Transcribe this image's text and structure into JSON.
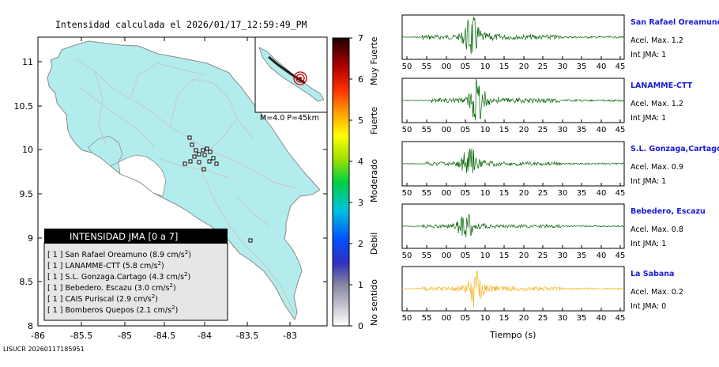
{
  "title": "Intensidad calculada el 2026/01/17_12:59:49_PM",
  "footer": "LISUCR 20260117185951",
  "map": {
    "y_ticks": [
      "11",
      "10.5",
      "10",
      "9.5",
      "9",
      "8.5",
      "8"
    ],
    "x_ticks": [
      "-86",
      "-85.5",
      "-85",
      "-84.5",
      "-84",
      "-83.5",
      "-83"
    ],
    "land_color": "#b3ecec",
    "road_color": "#c8c8c8",
    "inset_label": "M=4.0 P=45km",
    "legend": {
      "title": "INTENSIDAD JMA [0 a 7]",
      "items": [
        {
          "int": "[ 1 ]",
          "name": "San Rafael Oreamuno",
          "value": "(8.9 cm/s",
          "sup": "2",
          "end": ")"
        },
        {
          "int": "[ 1 ]",
          "name": "LANAMME-CTT",
          "value": "(5.8 cm/s",
          "sup": "2",
          "end": ")"
        },
        {
          "int": "[ 1 ]",
          "name": "S.L. Gonzaga.Cartago",
          "value": "(4.3 cm/s",
          "sup": "2",
          "end": ")"
        },
        {
          "int": "[ 1 ]",
          "name": "Bebedero. Escazu",
          "value": "(3.0 cm/s",
          "sup": "2",
          "end": ")"
        },
        {
          "int": "[ 1 ]",
          "name": "CAIS Puriscal",
          "value": "(2.9 cm/s",
          "sup": "2",
          "end": ")"
        },
        {
          "int": "[ 1 ]",
          "name": "Bomberos Quepos",
          "value": "(2.1 cm/s",
          "sup": "2",
          "end": ")"
        }
      ]
    }
  },
  "colorbar": {
    "ticks": [
      "0",
      "1",
      "2",
      "3",
      "4",
      "5",
      "6",
      "7"
    ],
    "labels": [
      "No sentido",
      "Debil",
      "Moderado",
      "Fuerte",
      "Muy Fuerte"
    ]
  },
  "waveforms": {
    "x_ticks": [
      "50",
      "55",
      "00",
      "05",
      "10",
      "15",
      "20",
      "25",
      "30",
      "35",
      "40",
      "45"
    ],
    "xlabel": "Tiempo (s)",
    "panels": [
      {
        "name": "San Rafael Oreamuno",
        "acel": "Acel. Max. 1.2",
        "jma": "Int JMA: 1",
        "color": "#006400"
      },
      {
        "name": "LANAMME-CTT",
        "acel": "Acel. Max. 1.2",
        "jma": "Int JMA: 1",
        "color": "#006400"
      },
      {
        "name": "S.L. Gonzaga,Cartago",
        "acel": "Acel. Max. 0.9",
        "jma": "Int JMA: 1",
        "color": "#006400"
      },
      {
        "name": "Bebedero, Escazu",
        "acel": "Acel. Max. 0.8",
        "jma": "Int JMA: 1",
        "color": "#006400"
      },
      {
        "name": "La Sabana",
        "acel": "Acel. Max. 0.2",
        "jma": "Int JMA: 0",
        "color": "#f5b21c"
      }
    ]
  },
  "chart_data": [
    {
      "type": "map",
      "title": "Intensidad calculada el 2026/01/17_12:59:49_PM",
      "xlim": [
        -86,
        -82.7
      ],
      "ylim": [
        8,
        11.2
      ],
      "stations": [
        {
          "name": "San Rafael Oreamuno",
          "intensity": 1,
          "pga_cm_s2": 8.9
        },
        {
          "name": "LANAMME-CTT",
          "intensity": 1,
          "pga_cm_s2": 5.8
        },
        {
          "name": "S.L. Gonzaga.Cartago",
          "intensity": 1,
          "pga_cm_s2": 4.3
        },
        {
          "name": "Bebedero. Escazu",
          "intensity": 1,
          "pga_cm_s2": 3.0
        },
        {
          "name": "CAIS Puriscal",
          "intensity": 1,
          "pga_cm_s2": 2.9
        },
        {
          "name": "Bomberos Quepos",
          "intensity": 1,
          "pga_cm_s2": 2.1
        }
      ],
      "colorbar": {
        "min": 0,
        "max": 7
      }
    },
    {
      "type": "line",
      "xlabel": "Tiempo (s)",
      "series": [
        {
          "name": "San Rafael Oreamuno",
          "max_accel": 1.2,
          "jma": 1
        },
        {
          "name": "LANAMME-CTT",
          "max_accel": 1.2,
          "jma": 1
        },
        {
          "name": "S.L. Gonzaga,Cartago",
          "max_accel": 0.9,
          "jma": 1
        },
        {
          "name": "Bebedero, Escazu",
          "max_accel": 0.8,
          "jma": 1
        },
        {
          "name": "La Sabana",
          "max_accel": 0.2,
          "jma": 0
        }
      ]
    }
  ]
}
